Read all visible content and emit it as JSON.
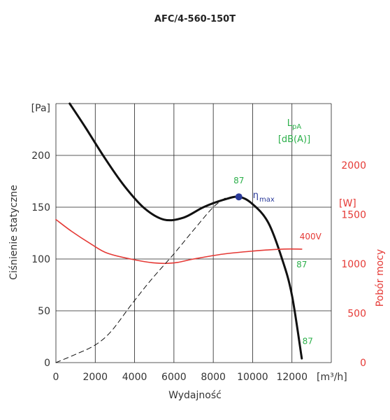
{
  "chart_data": {
    "type": "line",
    "title": "AFC/4-560-150T",
    "xlabel": "Wydajność",
    "x_unit": "[m³/h]",
    "ylabel_left": "Ciśnienie statyczne",
    "y_unit_left": "[Pa]",
    "ylabel_right": "Pobór mocy",
    "y_unit_right": "[W]",
    "xlim": [
      0,
      14000
    ],
    "ylim_left": [
      0,
      250
    ],
    "ylim_right": [
      0,
      2625
    ],
    "grid": true,
    "x_ticks": [
      "0",
      "2000",
      "4000",
      "6000",
      "8000",
      "10000",
      "12000"
    ],
    "y_ticks_left": [
      "0",
      "50",
      "100",
      "150",
      "200"
    ],
    "y_ticks_right": [
      "0",
      "500",
      "1000",
      "1500",
      "2000"
    ],
    "noise_label_line1": "LpA",
    "noise_label_line2": "[dB(A)]",
    "series": [
      {
        "name": "pressure",
        "axis": "left",
        "color": "#111111",
        "points": [
          [
            700,
            250
          ],
          [
            1500,
            227
          ],
          [
            2500,
            197
          ],
          [
            3500,
            170
          ],
          [
            4500,
            149
          ],
          [
            5500,
            138
          ],
          [
            6500,
            140
          ],
          [
            7500,
            150
          ],
          [
            8500,
            157
          ],
          [
            9300,
            160
          ],
          [
            10000,
            153
          ],
          [
            10800,
            135
          ],
          [
            11500,
            100
          ],
          [
            12000,
            65
          ],
          [
            12500,
            4
          ]
        ]
      },
      {
        "name": "power",
        "axis": "right",
        "label": "400V",
        "color": "#e53935",
        "points": [
          [
            0,
            1450
          ],
          [
            800,
            1330
          ],
          [
            1800,
            1200
          ],
          [
            2600,
            1110
          ],
          [
            3800,
            1050
          ],
          [
            5000,
            1010
          ],
          [
            6000,
            1010
          ],
          [
            7000,
            1050
          ],
          [
            8500,
            1100
          ],
          [
            10000,
            1130
          ],
          [
            11500,
            1150
          ],
          [
            12500,
            1150
          ]
        ]
      },
      {
        "name": "system-curve",
        "axis": "left",
        "style": "dashed",
        "color": "#111111",
        "points": [
          [
            0,
            0
          ],
          [
            1000,
            8
          ],
          [
            2000,
            17
          ],
          [
            2800,
            30
          ],
          [
            3800,
            55
          ],
          [
            4800,
            79
          ],
          [
            6000,
            105
          ],
          [
            7000,
            128
          ],
          [
            8000,
            150
          ],
          [
            8700,
            160
          ]
        ]
      }
    ],
    "annotations": {
      "eta_max": {
        "symbol": "η",
        "subscript": "max",
        "x": 9300,
        "y": 160
      },
      "green_labels": [
        {
          "text": "87",
          "x": 9300,
          "y": 173
        },
        {
          "text": "87",
          "x": 12500,
          "y": 92
        },
        {
          "text": "87",
          "x": 12800,
          "y": 18
        }
      ]
    }
  }
}
